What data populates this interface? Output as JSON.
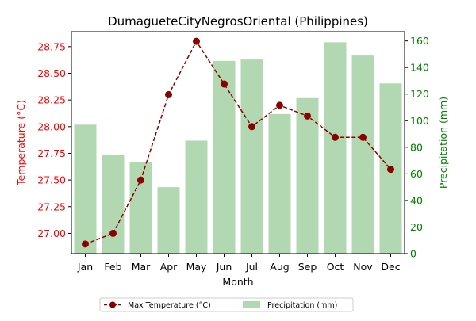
{
  "chart_data": {
    "type": "bar",
    "title": "DumagueteCityNegrosOriental (Philippines)",
    "xlabel": "Month",
    "categories": [
      "Jan",
      "Feb",
      "Mar",
      "Apr",
      "May",
      "Jun",
      "Jul",
      "Aug",
      "Sep",
      "Oct",
      "Nov",
      "Dec"
    ],
    "series": [
      {
        "name": "Max Temperature (°C)",
        "type": "line",
        "axis": "left",
        "color": "#8b0000",
        "values": [
          26.9,
          27.0,
          27.5,
          28.3,
          28.8,
          28.4,
          28.0,
          28.2,
          28.1,
          27.9,
          27.9,
          27.6
        ]
      },
      {
        "name": "Precipitation (mm)",
        "type": "bar",
        "axis": "right",
        "color": "#b2d8b2",
        "values": [
          97,
          74,
          69,
          50,
          85,
          145,
          146,
          105,
          117,
          159,
          149,
          128
        ]
      }
    ],
    "left_axis": {
      "label": "Temperature (°C)",
      "color": "#ff0000",
      "range": [
        26.81,
        28.89
      ],
      "ticks": [
        "27.00",
        "27.25",
        "27.50",
        "27.75",
        "28.00",
        "28.25",
        "28.50",
        "28.75"
      ]
    },
    "right_axis": {
      "label": "Precipitation (mm)",
      "color": "#008000",
      "range": [
        0,
        166.95
      ],
      "ticks": [
        "0",
        "20",
        "40",
        "60",
        "80",
        "100",
        "120",
        "140",
        "160"
      ]
    },
    "grid": false,
    "legend_placement": "bottom-center"
  }
}
